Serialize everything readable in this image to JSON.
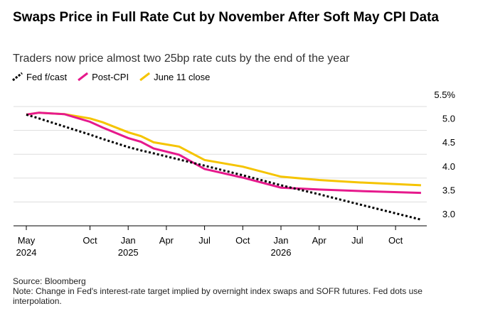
{
  "chart_data": {
    "type": "line",
    "title": "Swaps Price in Full Rate Cut by November After Soft May CPI Data",
    "subtitle": "Traders now price almost two 25bp rate cuts by the end of the year",
    "source": "Source: Bloomberg",
    "note": "Note: Change in Fed's interest-rate target implied by overnight index swaps and SOFR futures. Fed dots use interpolation.",
    "x": [
      "2024-05",
      "2024-06",
      "2024-08",
      "2024-10",
      "2024-11",
      "2025-01",
      "2025-02",
      "2025-03",
      "2025-05",
      "2025-07",
      "2025-10",
      "2026-01",
      "2026-04",
      "2026-07",
      "2026-12"
    ],
    "series": [
      {
        "name": "Fed f/cast",
        "color": "#000000",
        "dashed": true,
        "values": [
          5.33,
          5.25,
          5.08,
          4.91,
          4.82,
          4.65,
          4.58,
          4.52,
          4.39,
          4.26,
          4.06,
          3.85,
          3.66,
          3.46,
          3.13
        ]
      },
      {
        "name": "Post-CPI",
        "color": "#e6198c",
        "values": [
          5.33,
          5.37,
          5.34,
          5.18,
          5.06,
          4.84,
          4.76,
          4.62,
          4.49,
          4.19,
          4.01,
          3.8,
          3.76,
          3.73,
          3.69
        ]
      },
      {
        "name": "June 11 close",
        "color": "#f5c400",
        "values": [
          5.33,
          5.37,
          5.34,
          5.25,
          5.17,
          4.96,
          4.88,
          4.75,
          4.66,
          4.38,
          4.24,
          4.03,
          3.96,
          3.91,
          3.85
        ]
      }
    ],
    "ylim": [
      3.0,
      5.5
    ],
    "yticks": [
      {
        "value": 3.0,
        "label": "3.0"
      },
      3.5,
      {
        "value": 4.0,
        "label": "4.0"
      },
      4.5,
      {
        "value": 5.0,
        "label": "5.0"
      },
      {
        "value": 5.5,
        "label": "5.5%"
      }
    ],
    "xticks": [
      {
        "value": "2024-05",
        "label": "May",
        "year": "2024"
      },
      {
        "value": "2024-10",
        "label": "Oct"
      },
      {
        "value": "2025-01",
        "label": "Jan",
        "year": "2025"
      },
      {
        "value": "2025-04",
        "label": "Apr"
      },
      {
        "value": "2025-07",
        "label": "Jul"
      },
      {
        "value": "2025-10",
        "label": "Oct"
      },
      {
        "value": "2026-01",
        "label": "Jan",
        "year": "2026"
      },
      {
        "value": "2026-04",
        "label": "Apr"
      },
      {
        "value": "2026-07",
        "label": "Jul"
      },
      {
        "value": "2026-10",
        "label": "Oct"
      }
    ],
    "grid": true
  }
}
